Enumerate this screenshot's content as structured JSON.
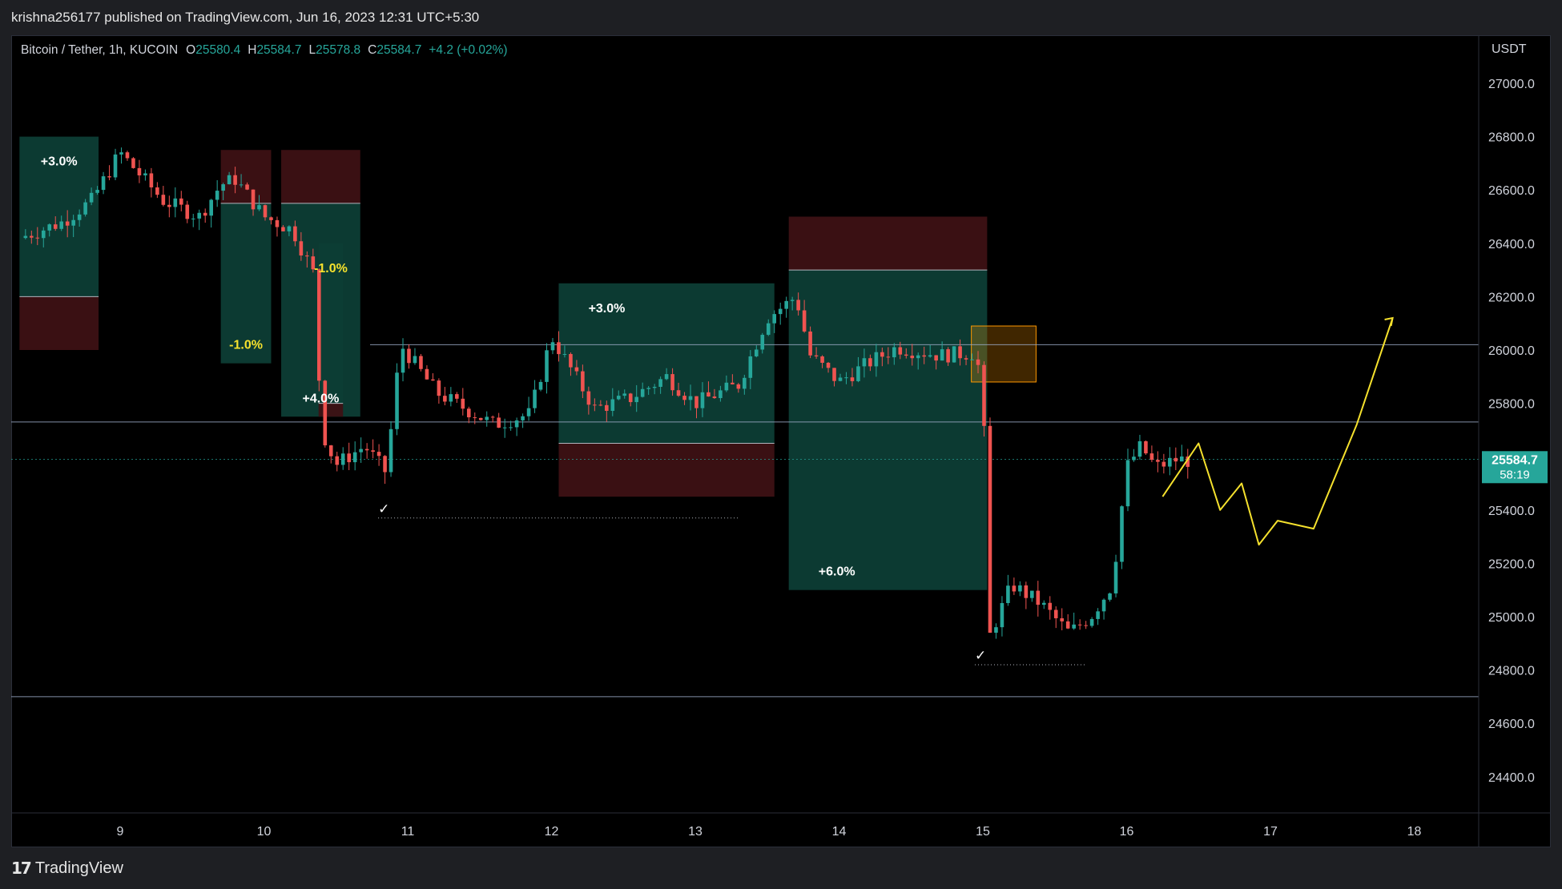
{
  "header": {
    "published": "krishna256177 published on TradingView.com, Jun 16, 2023 12:31 UTC+5:30"
  },
  "legend": {
    "symbol": "Bitcoin / Tether, 1h, KUCOIN",
    "open_label": "O",
    "open": "25580.4",
    "high_label": "H",
    "high": "25584.7",
    "low_label": "L",
    "low": "25578.8",
    "close_label": "C",
    "close": "25584.7",
    "change": "+4.2 (+0.02%)"
  },
  "price_axis": {
    "currency": "USDT",
    "last_price": "25584.7",
    "countdown": "58:19"
  },
  "footer": {
    "brand": "TradingView"
  },
  "colors": {
    "up": "#26a69a",
    "down": "#ef5350",
    "profit_zone": "#0d3d35",
    "loss_zone": "#3d1114",
    "annotation": "#f5e12d",
    "hline": "#9aa8c4"
  },
  "chart_data": {
    "type": "candlestick",
    "symbol": "Bitcoin / Tether",
    "timeframe": "1h",
    "exchange": "KUCOIN",
    "currency": "USDT",
    "x_ticks": [
      "9",
      "10",
      "11",
      "12",
      "13",
      "14",
      "15",
      "16",
      "17",
      "18"
    ],
    "y_ticks": [
      27000,
      26800,
      26600,
      26400,
      26200,
      26000,
      25800,
      25600,
      25400,
      25200,
      25000,
      24800,
      24600,
      24400
    ],
    "ylim": [
      24270,
      27130
    ],
    "last_price": 25584.7,
    "price_path": [
      [
        8.3,
        26420
      ],
      [
        8.6,
        26480
      ],
      [
        8.8,
        26560
      ],
      [
        9.0,
        26740
      ],
      [
        9.3,
        26560
      ],
      [
        9.55,
        26500
      ],
      [
        9.7,
        26620
      ],
      [
        9.8,
        26640
      ],
      [
        10.0,
        26500
      ],
      [
        10.2,
        26450
      ],
      [
        10.35,
        26280
      ],
      [
        10.4,
        25700
      ],
      [
        10.5,
        25570
      ],
      [
        10.7,
        25640
      ],
      [
        10.85,
        25540
      ],
      [
        10.95,
        26020
      ],
      [
        11.2,
        25840
      ],
      [
        11.6,
        25720
      ],
      [
        11.85,
        25760
      ],
      [
        12.0,
        26050
      ],
      [
        12.3,
        25780
      ],
      [
        12.55,
        25820
      ],
      [
        12.8,
        25900
      ],
      [
        13.0,
        25800
      ],
      [
        13.3,
        25870
      ],
      [
        13.5,
        26120
      ],
      [
        13.7,
        26200
      ],
      [
        13.8,
        25980
      ],
      [
        14.0,
        25880
      ],
      [
        14.2,
        25950
      ],
      [
        14.4,
        26010
      ],
      [
        14.7,
        25980
      ],
      [
        14.95,
        25990
      ],
      [
        15.0,
        25840
      ],
      [
        15.05,
        24930
      ],
      [
        15.2,
        25120
      ],
      [
        15.4,
        25050
      ],
      [
        15.6,
        24940
      ],
      [
        15.75,
        25000
      ],
      [
        15.9,
        25120
      ],
      [
        16.0,
        25560
      ],
      [
        16.1,
        25640
      ],
      [
        16.2,
        25560
      ],
      [
        16.35,
        25590
      ],
      [
        16.45,
        25584.7
      ]
    ],
    "horizontal_levels": [
      26020,
      25730,
      25590,
      24700
    ],
    "trade_positions": [
      {
        "label": "+3.0%",
        "start": 8.3,
        "end": 8.85,
        "entry": 26200,
        "target": 26800,
        "stop": 26000
      },
      {
        "label": "-1.0%",
        "start": 9.7,
        "end": 10.05,
        "entry": 26550,
        "target": 25950,
        "stop": 26750
      },
      {
        "label": "+4.0%",
        "start": 10.12,
        "end": 10.67,
        "entry": 26550,
        "target": 25750,
        "stop": 26750
      },
      {
        "label": "-1.0%",
        "start": 10.38,
        "end": 10.55,
        "entry": 25800,
        "target": 26400,
        "stop": 25750
      },
      {
        "label": "+3.0%",
        "start": 12.05,
        "end": 13.55,
        "entry": 25650,
        "target": 26250,
        "stop": 25450
      },
      {
        "label": "+6.0%",
        "start": 13.65,
        "end": 15.03,
        "entry": 26300,
        "target": 25100,
        "stop": 26500
      }
    ],
    "marked_zone": {
      "start": 14.92,
      "end": 15.37,
      "from": 25880,
      "to": 26090
    },
    "checkmarks": [
      "✓",
      "✓"
    ],
    "projection_path": [
      [
        16.25,
        25450
      ],
      [
        16.5,
        25650
      ],
      [
        16.65,
        25400
      ],
      [
        16.8,
        25500
      ],
      [
        16.92,
        25270
      ],
      [
        17.05,
        25360
      ],
      [
        17.3,
        25330
      ],
      [
        17.6,
        25720
      ],
      [
        17.85,
        26120
      ]
    ]
  }
}
